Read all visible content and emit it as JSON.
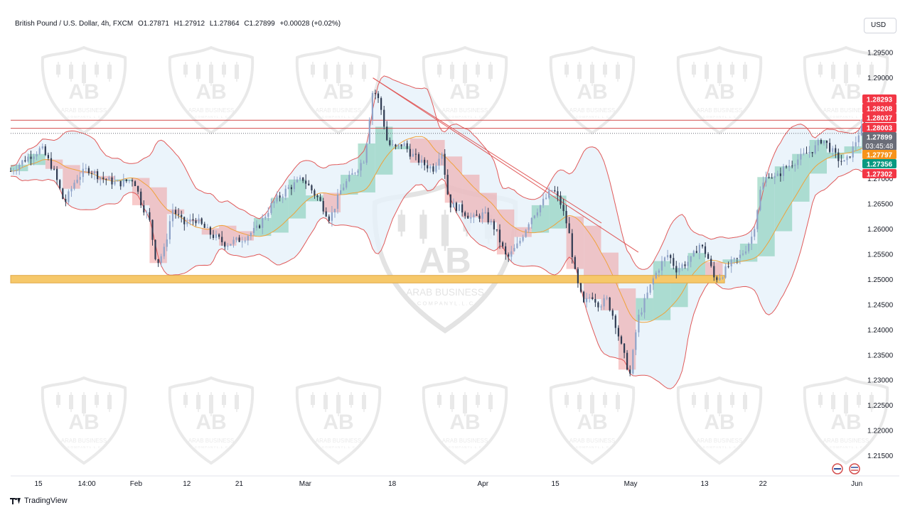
{
  "header": {
    "symbol": "British Pound / U.S. Dollar, 4h, FXCM",
    "open": "O1.27871",
    "high": "H1.27912",
    "low": "L1.27864",
    "close": "C1.27899",
    "change": "+0.00028 (+0.02%)"
  },
  "currency_button": "USD",
  "footer": {
    "brand": "TradingView"
  },
  "watermark": {
    "text_line1": "ARAB BUSINESS",
    "text_line2": "C O M P A N Y  L . L . C",
    "initials": "AB"
  },
  "colors": {
    "up_candle": "#8fa3c8",
    "down_candle": "#2f3b52",
    "bollinger": "#e05a5a",
    "bollinger_fill": "#e6f1fa",
    "ma_line": "#f0a23a",
    "resistance": "#d44d4d",
    "support_zone": "#f6c86a",
    "badge_red": "#f23645",
    "badge_gray": "#6a6d78",
    "badge_orange": "#f7931a",
    "badge_green": "#089981"
  },
  "chart_data": {
    "type": "candlestick",
    "y_axis": {
      "min": 1.211,
      "max": 1.297,
      "ticks": [
        "1.29500",
        "1.29000",
        "1.28500",
        "1.28000",
        "1.27500",
        "1.27000",
        "1.26500",
        "1.26000",
        "1.25500",
        "1.25000",
        "1.24500",
        "1.24000",
        "1.23500",
        "1.23000",
        "1.22500",
        "1.22000",
        "1.21500"
      ]
    },
    "x_axis": {
      "labels": [
        "15",
        "14:00",
        "Feb",
        "12",
        "21",
        "Mar",
        "18",
        "Apr",
        "15",
        "May",
        "13",
        "22",
        "Jun"
      ],
      "label_positions": [
        0.036,
        0.099,
        0.163,
        0.229,
        0.297,
        0.383,
        0.496,
        0.614,
        0.708,
        0.806,
        0.902,
        0.978,
        1.1
      ]
    },
    "price_labels": [
      {
        "text": "1.28293",
        "value": 1.28293,
        "kind": "red"
      },
      {
        "text": "1.28208",
        "value": 1.28208,
        "kind": "red"
      },
      {
        "text": "1.28037",
        "value": 1.28037,
        "kind": "red"
      },
      {
        "text": "1.28003",
        "value": 1.28003,
        "kind": "red"
      },
      {
        "text": "1.27899",
        "value": 1.27899,
        "kind": "gray",
        "sub": "03:45:48"
      },
      {
        "text": "1.27797",
        "value": 1.27797,
        "kind": "orange"
      },
      {
        "text": "1.27356",
        "value": 1.27356,
        "kind": "green"
      },
      {
        "text": "1.27302",
        "value": 1.27302,
        "kind": "red"
      }
    ],
    "resistance_lines": [
      1.2816,
      1.28
    ],
    "support_zone": [
      1.2493,
      1.2508
    ],
    "trendlines": [
      {
        "from": [
          0.471,
          1.29
        ],
        "to": [
          0.816,
          1.2554
        ]
      },
      {
        "from": [
          0.471,
          1.29
        ],
        "to": [
          0.768,
          1.2612
        ]
      }
    ],
    "price_path": [
      [
        0.0,
        1.2715
      ],
      [
        0.02,
        1.274
      ],
      [
        0.04,
        1.276
      ],
      [
        0.055,
        1.272
      ],
      [
        0.07,
        1.265
      ],
      [
        0.085,
        1.27
      ],
      [
        0.1,
        1.272
      ],
      [
        0.12,
        1.27
      ],
      [
        0.14,
        1.269
      ],
      [
        0.16,
        1.27
      ],
      [
        0.17,
        1.265
      ],
      [
        0.18,
        1.262
      ],
      [
        0.19,
        1.253
      ],
      [
        0.2,
        1.256
      ],
      [
        0.21,
        1.264
      ],
      [
        0.225,
        1.261
      ],
      [
        0.24,
        1.262
      ],
      [
        0.26,
        1.259
      ],
      [
        0.28,
        1.257
      ],
      [
        0.3,
        1.258
      ],
      [
        0.32,
        1.26
      ],
      [
        0.34,
        1.265
      ],
      [
        0.36,
        1.268
      ],
      [
        0.38,
        1.27
      ],
      [
        0.4,
        1.266
      ],
      [
        0.415,
        1.262
      ],
      [
        0.43,
        1.268
      ],
      [
        0.445,
        1.271
      ],
      [
        0.46,
        1.274
      ],
      [
        0.471,
        1.288
      ],
      [
        0.48,
        1.285
      ],
      [
        0.49,
        1.277
      ],
      [
        0.5,
        1.276
      ],
      [
        0.51,
        1.277
      ],
      [
        0.52,
        1.275
      ],
      [
        0.535,
        1.273
      ],
      [
        0.55,
        1.272
      ],
      [
        0.56,
        1.276
      ],
      [
        0.57,
        1.265
      ],
      [
        0.585,
        1.264
      ],
      [
        0.6,
        1.262
      ],
      [
        0.615,
        1.263
      ],
      [
        0.63,
        1.26
      ],
      [
        0.645,
        1.254
      ],
      [
        0.66,
        1.257
      ],
      [
        0.675,
        1.262
      ],
      [
        0.69,
        1.265
      ],
      [
        0.705,
        1.268
      ],
      [
        0.715,
        1.265
      ],
      [
        0.725,
        1.26
      ],
      [
        0.735,
        1.25
      ],
      [
        0.745,
        1.245
      ],
      [
        0.755,
        1.247
      ],
      [
        0.765,
        1.245
      ],
      [
        0.775,
        1.246
      ],
      [
        0.785,
        1.242
      ],
      [
        0.795,
        1.236
      ],
      [
        0.805,
        1.231
      ],
      [
        0.815,
        1.242
      ],
      [
        0.825,
        1.246
      ],
      [
        0.835,
        1.25
      ],
      [
        0.845,
        1.253
      ],
      [
        0.855,
        1.255
      ],
      [
        0.865,
        1.252
      ],
      [
        0.875,
        1.253
      ],
      [
        0.885,
        1.254
      ],
      [
        0.895,
        1.257
      ],
      [
        0.905,
        1.255
      ],
      [
        0.915,
        1.25
      ],
      [
        0.925,
        1.251
      ],
      [
        0.935,
        1.253
      ],
      [
        0.945,
        1.254
      ],
      [
        0.955,
        1.256
      ],
      [
        0.965,
        1.259
      ],
      [
        0.975,
        1.268
      ],
      [
        0.985,
        1.271
      ],
      [
        0.995,
        1.27
      ],
      [
        1.005,
        1.272
      ],
      [
        1.015,
        1.273
      ],
      [
        1.025,
        1.274
      ],
      [
        1.035,
        1.275
      ],
      [
        1.045,
        1.276
      ],
      [
        1.055,
        1.278
      ],
      [
        1.065,
        1.276
      ],
      [
        1.075,
        1.274
      ],
      [
        1.085,
        1.273
      ],
      [
        1.095,
        1.276
      ],
      [
        1.105,
        1.28
      ],
      [
        1.115,
        1.279
      ],
      [
        1.125,
        1.279
      ]
    ]
  }
}
